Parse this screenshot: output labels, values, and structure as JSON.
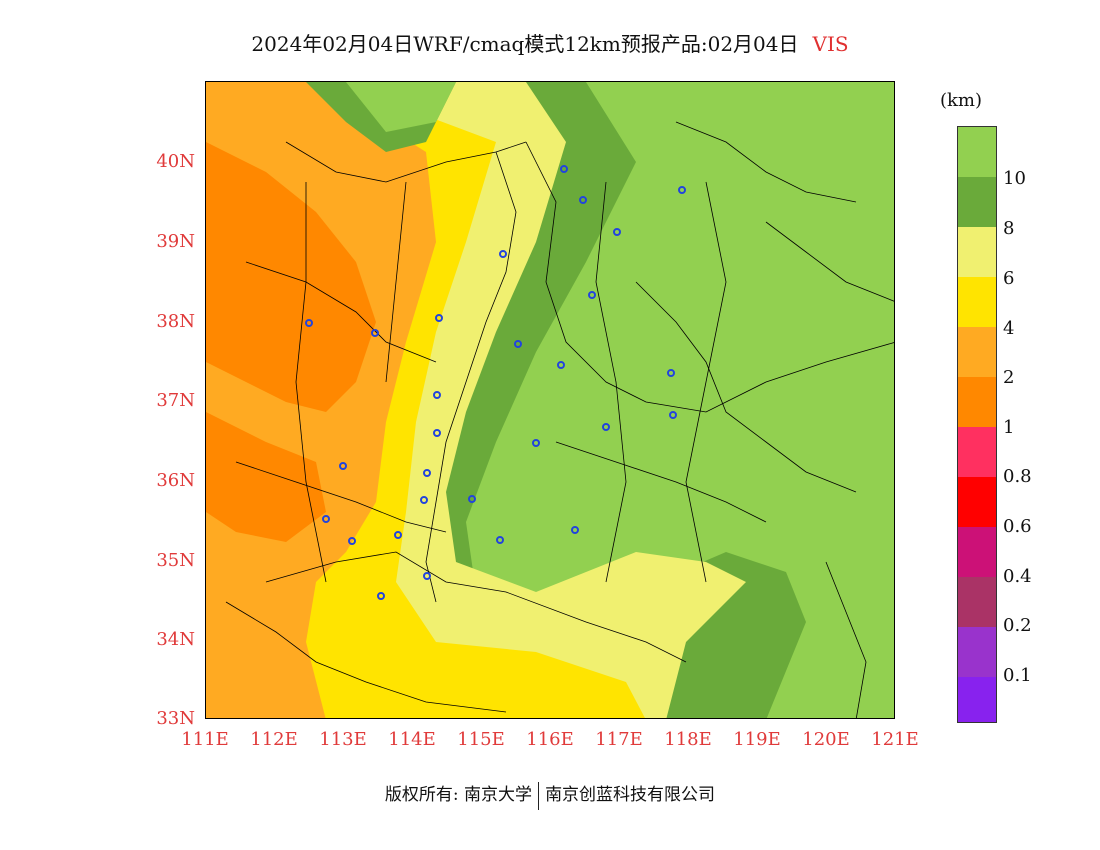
{
  "header": {
    "title": "2024年02月04日WRF/cmaq模式12km预报产品:02月04日",
    "variable": "VIS"
  },
  "map": {
    "lat_labels": [
      "40N",
      "39N",
      "38N",
      "37N",
      "36N",
      "35N",
      "34N",
      "33N"
    ],
    "lon_labels": [
      "111E",
      "112E",
      "113E",
      "114E",
      "115E",
      "116E",
      "117E",
      "118E",
      "119E",
      "120E",
      "121E"
    ],
    "colors": {
      "green_light": "#92d050",
      "green_dark": "#6aaa3a",
      "yellow_light": "#f0f070",
      "yellow": "#ffe400",
      "orange_light": "#ffaa22",
      "orange": "#ff8800"
    }
  },
  "legend": {
    "unit": "(km)",
    "tick_labels": [
      "10",
      "8",
      "6",
      "4",
      "2",
      "1",
      "0.8",
      "0.6",
      "0.4",
      "0.2",
      "0.1"
    ],
    "swatch_colors": [
      "#92d050",
      "#6aaa3a",
      "#f0f070",
      "#ffe400",
      "#ffaa22",
      "#ff8800",
      "#ff3060",
      "#ff0000",
      "#cc1177",
      "#aa3366",
      "#9933cc",
      "#8822ee"
    ]
  },
  "footer": {
    "copyright_left": "版权所有: 南京大学",
    "copyright_right": "南京创蓝科技有限公司"
  }
}
